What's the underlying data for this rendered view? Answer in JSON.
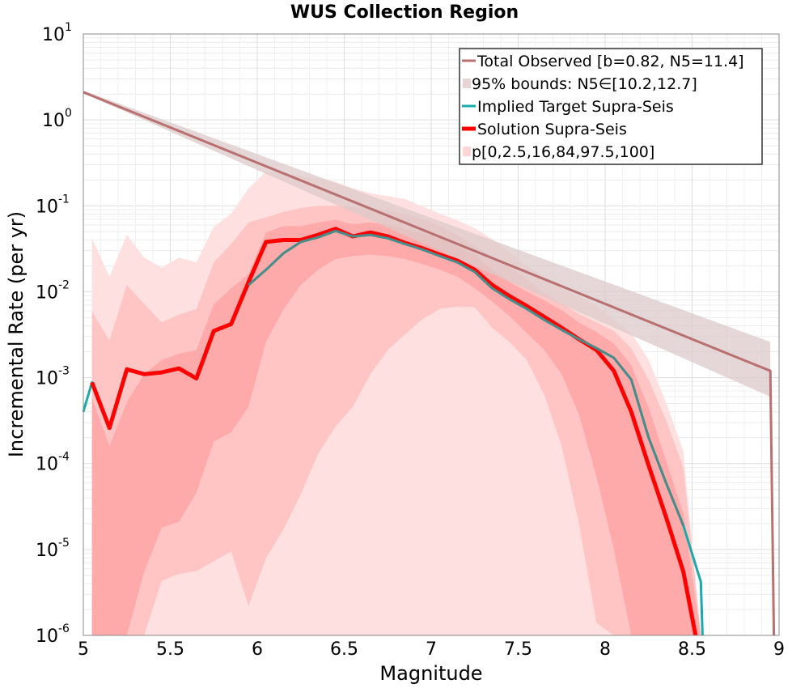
{
  "chart_data": {
    "type": "line",
    "title": "WUS Collection Region",
    "xlabel": "Magnitude",
    "ylabel": "Incremental Rate (per yr)",
    "xlim": [
      5,
      9
    ],
    "ylim": [
      1e-06,
      10
    ],
    "yscale": "log",
    "grid": true,
    "legend_position": "top-right",
    "x_ticks": [
      5,
      5.5,
      6,
      6.5,
      7,
      7.5,
      8,
      8.5,
      9
    ],
    "x_tick_labels": [
      "5",
      "5.5",
      "6",
      "6.5",
      "7",
      "7.5",
      "8",
      "8.5",
      "9"
    ],
    "y_ticks": [
      {
        "base": "10",
        "exp": "1",
        "value": 10
      },
      {
        "base": "10",
        "exp": "0",
        "value": 1
      },
      {
        "base": "10",
        "exp": "-1",
        "value": 0.1
      },
      {
        "base": "10",
        "exp": "-2",
        "value": 0.01
      },
      {
        "base": "10",
        "exp": "-3",
        "value": 0.001
      },
      {
        "base": "10",
        "exp": "-4",
        "value": 0.0001
      },
      {
        "base": "10",
        "exp": "-5",
        "value": 1e-05
      },
      {
        "base": "10",
        "exp": "-6",
        "value": 1e-06
      }
    ],
    "legend": [
      {
        "label": "Total Observed [b=0.82, N5=11.4]",
        "kind": "line",
        "color": "#b87070"
      },
      {
        "label": "95% bounds: N5∈[10.2,12.7]",
        "kind": "band",
        "color": "#e8d4d4"
      },
      {
        "label": "Implied Target Supra-Seis",
        "kind": "line",
        "color": "#1aaaa8"
      },
      {
        "label": "Solution Supra-Seis",
        "kind": "thickline",
        "color": "#ff0000"
      },
      {
        "label": "p[0,2.5,16,84,97.5,100]",
        "kind": "band",
        "color": "#ffd6d6"
      }
    ],
    "colors": {
      "observed": "#b87070",
      "observed_band": "#dccaca",
      "target": "#1aaaa8",
      "target_dark": "#4a8c8a",
      "solution": "#ff0000",
      "band_outer": "#ffe0e0",
      "band_mid": "#ffc4c4",
      "band_inner": "#ffaaaa"
    },
    "series": [
      {
        "name": "Total Observed [b=0.82, N5=11.4]",
        "x": [
          5.0,
          8.95,
          8.97
        ],
        "y": [
          2.1,
          0.0012,
          1e-06
        ]
      },
      {
        "name": "95% bounds: N5∈[10.2,12.7]",
        "x": [
          5.0,
          8.95
        ],
        "low": [
          2.05,
          0.0006
        ],
        "high": [
          2.2,
          0.0026
        ]
      },
      {
        "name": "Implied Target Supra-Seis",
        "x": [
          5.0,
          5.05,
          5.15,
          5.25,
          5.35,
          5.45,
          5.55,
          5.65,
          5.75,
          5.85,
          5.95,
          6.05,
          6.15,
          6.25,
          6.35,
          6.45,
          6.55,
          6.65,
          6.75,
          6.85,
          6.95,
          7.05,
          7.15,
          7.25,
          7.35,
          7.45,
          7.55,
          7.65,
          7.75,
          7.85,
          7.95,
          8.05,
          8.15,
          8.25,
          8.35,
          8.45,
          8.55,
          8.56
        ],
        "y": [
          0.0004,
          0.00088,
          0.00026,
          0.00125,
          0.0011,
          0.00115,
          0.00128,
          0.00098,
          0.0035,
          0.0042,
          0.012,
          0.018,
          0.028,
          0.038,
          0.043,
          0.051,
          0.044,
          0.046,
          0.042,
          0.036,
          0.031,
          0.026,
          0.022,
          0.017,
          0.011,
          0.0082,
          0.0063,
          0.0047,
          0.0036,
          0.0028,
          0.0022,
          0.0017,
          0.00095,
          0.0002,
          6e-05,
          1.9e-05,
          4.2e-06,
          1e-06
        ]
      },
      {
        "name": "Solution Supra-Seis",
        "x": [
          5.05,
          5.15,
          5.25,
          5.35,
          5.45,
          5.55,
          5.65,
          5.75,
          5.85,
          5.95,
          6.05,
          6.15,
          6.25,
          6.35,
          6.45,
          6.55,
          6.65,
          6.75,
          6.85,
          6.95,
          7.05,
          7.15,
          7.25,
          7.35,
          7.45,
          7.55,
          7.65,
          7.75,
          7.85,
          7.95,
          8.05,
          8.15,
          8.25,
          8.35,
          8.45,
          8.52
        ],
        "y": [
          0.00088,
          0.00026,
          0.00125,
          0.0011,
          0.00115,
          0.00128,
          0.00098,
          0.0035,
          0.0042,
          0.013,
          0.038,
          0.04,
          0.04,
          0.046,
          0.054,
          0.044,
          0.049,
          0.044,
          0.037,
          0.032,
          0.027,
          0.023,
          0.018,
          0.012,
          0.0089,
          0.0068,
          0.0051,
          0.0038,
          0.0028,
          0.0021,
          0.0012,
          0.0004,
          9.5e-05,
          2.4e-05,
          5.5e-06,
          1e-06
        ]
      },
      {
        "name": "p[0,2.5,16,84,97.5,100]",
        "x": [
          5.05,
          5.15,
          5.25,
          5.35,
          5.45,
          5.55,
          5.65,
          5.75,
          5.85,
          5.95,
          6.05,
          6.15,
          6.25,
          6.35,
          6.45,
          6.55,
          6.65,
          6.75,
          6.85,
          6.95,
          7.05,
          7.15,
          7.25,
          7.35,
          7.45,
          7.55,
          7.65,
          7.75,
          7.85,
          7.95,
          8.05,
          8.15,
          8.25,
          8.35,
          8.45,
          8.55
        ],
        "p0": [
          1e-06,
          1e-06,
          1e-06,
          1e-06,
          1e-06,
          1e-06,
          1e-06,
          1e-06,
          1e-06,
          1e-06,
          1e-06,
          1e-06,
          1e-06,
          1e-06,
          1e-06,
          1e-06,
          1e-06,
          1e-06,
          1e-06,
          1e-06,
          1e-06,
          1e-06,
          1e-06,
          1e-06,
          1e-06,
          1e-06,
          1e-06,
          1e-06,
          1e-06,
          1e-06,
          1e-06,
          1e-06,
          1e-06,
          1e-06,
          1e-06,
          1e-06
        ],
        "p2_5": [
          1e-06,
          1e-06,
          1e-06,
          1e-06,
          4.3e-06,
          5.2e-06,
          5.6e-06,
          7.3e-06,
          9.5e-06,
          2.2e-06,
          8e-06,
          1.7e-05,
          4.4e-05,
          0.00013,
          0.00027,
          0.00046,
          0.0011,
          0.0021,
          0.0032,
          0.0048,
          0.0063,
          0.0067,
          0.0066,
          0.0038,
          0.0026,
          0.0016,
          0.00063,
          0.00016,
          2e-05,
          1.4e-06,
          1e-06,
          1e-06,
          1e-06,
          1e-06,
          1e-06,
          1e-06
        ],
        "p16": [
          1e-06,
          1e-06,
          1e-06,
          5.5e-06,
          1.8e-05,
          2.1e-05,
          4.6e-05,
          0.00018,
          0.00023,
          0.00046,
          0.0026,
          0.0062,
          0.012,
          0.018,
          0.024,
          0.026,
          0.027,
          0.026,
          0.024,
          0.021,
          0.018,
          0.015,
          0.011,
          0.0077,
          0.0052,
          0.0033,
          0.0021,
          0.0011,
          0.00037,
          7e-05,
          1e-05,
          1e-06,
          1e-06,
          1e-06,
          1e-06,
          1e-06
        ],
        "p84": [
          0.00058,
          0.00016,
          0.00052,
          0.0011,
          0.0016,
          0.0019,
          0.0021,
          0.0071,
          0.011,
          0.016,
          0.049,
          0.058,
          0.058,
          0.064,
          0.069,
          0.061,
          0.064,
          0.061,
          0.054,
          0.048,
          0.042,
          0.034,
          0.027,
          0.018,
          0.013,
          0.01,
          0.0079,
          0.0061,
          0.0044,
          0.0034,
          0.0025,
          0.0014,
          0.00045,
          0.00011,
          2.6e-05,
          1e-06
        ],
        "p97_5": [
          0.0059,
          0.0027,
          0.012,
          0.0072,
          0.0044,
          0.0054,
          0.0063,
          0.022,
          0.036,
          0.064,
          0.073,
          0.085,
          0.094,
          0.1,
          0.1,
          0.097,
          0.094,
          0.088,
          0.08,
          0.07,
          0.058,
          0.046,
          0.034,
          0.026,
          0.02,
          0.014,
          0.0097,
          0.0073,
          0.0055,
          0.0044,
          0.0035,
          0.0022,
          0.00095,
          0.00032,
          9e-05,
          1e-06
        ],
        "p100": [
          0.042,
          0.015,
          0.046,
          0.025,
          0.019,
          0.025,
          0.022,
          0.057,
          0.081,
          0.16,
          0.25,
          0.24,
          0.22,
          0.21,
          0.19,
          0.16,
          0.14,
          0.13,
          0.12,
          0.098,
          0.081,
          0.068,
          0.055,
          0.041,
          0.029,
          0.02,
          0.015,
          0.011,
          0.0087,
          0.0068,
          0.0047,
          0.0033,
          0.0016,
          0.00052,
          0.00014,
          1e-06
        ]
      }
    ]
  }
}
